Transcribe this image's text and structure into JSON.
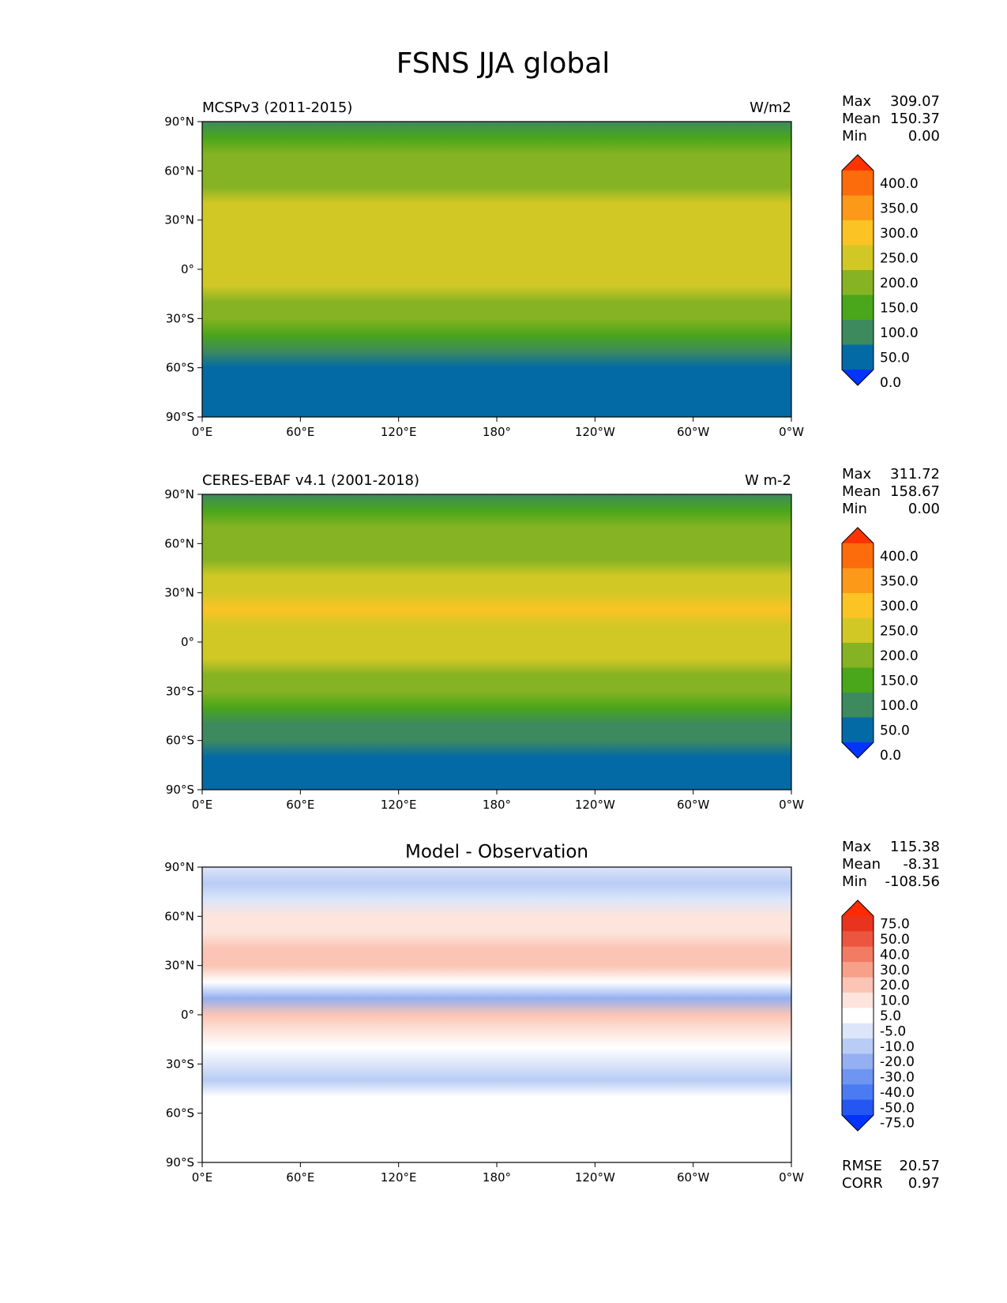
{
  "figure": {
    "title": "FSNS JJA global"
  },
  "chart_data": [
    {
      "type": "heatmap",
      "title_left": "MCSPv3 (2011-2015)",
      "title_right": "W/m2",
      "title_center": "",
      "x_ticks": [
        "0°E",
        "60°E",
        "120°E",
        "180°",
        "120°W",
        "60°W",
        "0°W"
      ],
      "y_ticks": [
        "90°N",
        "60°N",
        "30°N",
        "0°",
        "30°S",
        "60°S",
        "90°S"
      ],
      "xlim": [
        0,
        360
      ],
      "ylim": [
        -90,
        90
      ],
      "stats": [
        {
          "label": "Max",
          "value": "309.07"
        },
        {
          "label": "Mean",
          "value": "150.37"
        },
        {
          "label": "Min",
          "value": "0.00"
        }
      ],
      "colorbar": {
        "levels": [
          0,
          50,
          100,
          150,
          200,
          250,
          300,
          350,
          400
        ],
        "tick_labels": [
          "400.0",
          "350.0",
          "300.0",
          "250.0",
          "200.0",
          "150.0",
          "100.0",
          "50.0",
          "0.0"
        ],
        "colors": [
          "#0433ff",
          "#036aa6",
          "#3d8a5e",
          "#4aa61a",
          "#86b323",
          "#d2c825",
          "#fcc325",
          "#fc9918",
          "#fc6c0c",
          "#ff3300"
        ],
        "extend": "both"
      },
      "zonal_profile": {
        "lat": [
          90,
          80,
          70,
          60,
          50,
          40,
          30,
          20,
          10,
          0,
          -10,
          -20,
          -30,
          -40,
          -50,
          -60,
          -70,
          -80,
          -90
        ],
        "value": [
          80,
          100,
          150,
          170,
          180,
          210,
          225,
          240,
          220,
          210,
          210,
          190,
          150,
          110,
          70,
          45,
          30,
          10,
          0
        ]
      },
      "footer": []
    },
    {
      "type": "heatmap",
      "title_left": "CERES-EBAF v4.1 (2001-2018)",
      "title_right": "W m-2",
      "title_center": "",
      "x_ticks": [
        "0°E",
        "60°E",
        "120°E",
        "180°",
        "120°W",
        "60°W",
        "0°W"
      ],
      "y_ticks": [
        "90°N",
        "60°N",
        "30°N",
        "0°",
        "30°S",
        "60°S",
        "90°S"
      ],
      "xlim": [
        0,
        360
      ],
      "ylim": [
        -90,
        90
      ],
      "stats": [
        {
          "label": "Max",
          "value": "311.72"
        },
        {
          "label": "Mean",
          "value": "158.67"
        },
        {
          "label": "Min",
          "value": "0.00"
        }
      ],
      "colorbar": {
        "levels": [
          0,
          50,
          100,
          150,
          200,
          250,
          300,
          350,
          400
        ],
        "tick_labels": [
          "400.0",
          "350.0",
          "300.0",
          "250.0",
          "200.0",
          "150.0",
          "100.0",
          "50.0",
          "0.0"
        ],
        "colors": [
          "#0433ff",
          "#036aa6",
          "#3d8a5e",
          "#4aa61a",
          "#86b323",
          "#d2c825",
          "#fcc325",
          "#fc9918",
          "#fc6c0c",
          "#ff3300"
        ],
        "extend": "both"
      },
      "zonal_profile": {
        "lat": [
          90,
          80,
          70,
          60,
          50,
          40,
          30,
          20,
          10,
          0,
          -10,
          -20,
          -30,
          -40,
          -50,
          -60,
          -70,
          -80,
          -90
        ],
        "value": [
          90,
          110,
          160,
          175,
          190,
          215,
          235,
          250,
          230,
          215,
          215,
          195,
          160,
          120,
          75,
          50,
          35,
          10,
          0
        ]
      },
      "footer": []
    },
    {
      "type": "heatmap",
      "title_left": "",
      "title_right": "",
      "title_center": "Model - Observation",
      "x_ticks": [
        "0°E",
        "60°E",
        "120°E",
        "180°",
        "120°W",
        "60°W",
        "0°W"
      ],
      "y_ticks": [
        "90°N",
        "60°N",
        "30°N",
        "0°",
        "30°S",
        "60°S",
        "90°S"
      ],
      "xlim": [
        0,
        360
      ],
      "ylim": [
        -90,
        90
      ],
      "stats": [
        {
          "label": "Max",
          "value": "115.38"
        },
        {
          "label": "Mean",
          "value": "-8.31"
        },
        {
          "label": "Min",
          "value": "-108.56"
        }
      ],
      "colorbar": {
        "levels": [
          -75,
          -50,
          -40,
          -30,
          -20,
          -10,
          -5,
          5,
          10,
          20,
          30,
          40,
          50,
          75
        ],
        "tick_labels": [
          "75.0",
          "50.0",
          "40.0",
          "30.0",
          "20.0",
          "10.0",
          "5.0",
          "-5.0",
          "-10.0",
          "-20.0",
          "-30.0",
          "-40.0",
          "-50.0",
          "-75.0"
        ],
        "colors": [
          "#0433ff",
          "#2456f2",
          "#4a7bf2",
          "#6e95f2",
          "#94b0f2",
          "#b8ccf5",
          "#dde5fa",
          "#ffffff",
          "#fde4dc",
          "#fbc4b4",
          "#f7a08a",
          "#f27b64",
          "#ec5640",
          "#e8331f",
          "#ff2a00"
        ],
        "extend": "both"
      },
      "zonal_profile": {
        "lat": [
          90,
          80,
          70,
          60,
          50,
          40,
          30,
          20,
          10,
          0,
          -10,
          -20,
          -30,
          -40,
          -50,
          -60,
          -70,
          -80,
          -90
        ],
        "value": [
          -10,
          -15,
          -8,
          5,
          8,
          12,
          10,
          -5,
          -25,
          10,
          5,
          -5,
          -10,
          -15,
          -5,
          0,
          0,
          0,
          0
        ]
      },
      "footer": [
        {
          "label": "RMSE",
          "value": "20.57"
        },
        {
          "label": "CORR",
          "value": "0.97"
        }
      ]
    }
  ]
}
